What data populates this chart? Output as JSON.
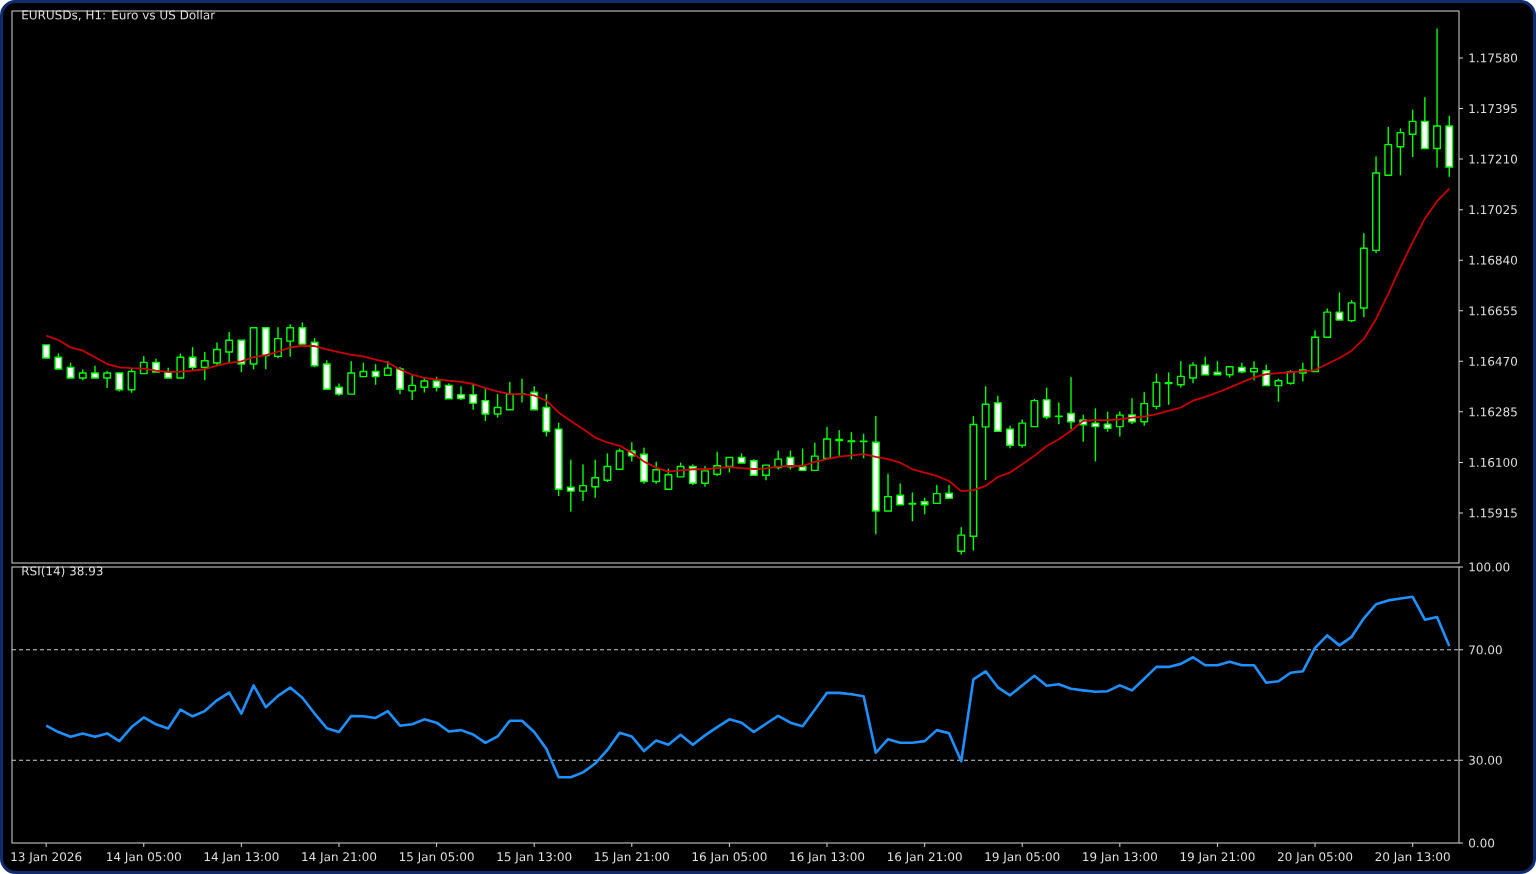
{
  "chart_data": [
    {
      "type": "candlestick",
      "title": "EURUSDs, H1: Euro vs US Dollar",
      "categories": [
        null,
        null,
        null,
        null,
        null,
        null,
        null,
        null,
        null,
        null,
        null,
        null,
        null,
        null,
        null,
        null,
        null,
        null,
        null,
        null,
        null,
        null,
        null,
        null,
        null,
        null,
        null,
        null,
        null,
        null,
        null,
        null,
        null,
        null,
        null,
        null,
        null,
        null,
        null,
        null,
        null,
        null,
        null,
        null,
        null,
        null,
        null,
        null,
        null,
        null,
        null,
        null,
        null,
        null,
        null,
        null,
        null,
        null,
        null,
        null,
        null,
        null,
        null,
        null,
        null,
        null,
        null,
        null,
        null,
        null,
        null,
        null,
        null,
        null,
        null,
        null,
        null,
        null,
        null,
        null,
        null,
        null,
        null,
        null,
        null,
        null,
        null,
        null,
        null,
        null,
        null,
        null,
        null,
        null,
        null,
        null,
        null,
        null,
        null,
        null,
        null,
        null,
        null,
        null,
        null,
        null,
        null,
        null,
        null,
        null,
        null,
        null,
        null,
        null,
        null,
        null
      ],
      "ohlc": [
        [
          1.1653,
          1.1653,
          1.16482,
          1.16482
        ],
        [
          1.16485,
          1.16497,
          1.16441,
          1.16442
        ],
        [
          1.16448,
          1.16463,
          1.16408,
          1.16409
        ],
        [
          1.16409,
          1.16438,
          1.16401,
          1.16427
        ],
        [
          1.16427,
          1.16452,
          1.16409,
          1.16409
        ],
        [
          1.16409,
          1.16433,
          1.16372,
          1.16427
        ],
        [
          1.16427,
          1.16427,
          1.1636,
          1.16366
        ],
        [
          1.16366,
          1.16439,
          1.16355,
          1.16433
        ],
        [
          1.16425,
          1.16487,
          1.16425,
          1.16466
        ],
        [
          1.16466,
          1.16478,
          1.1643,
          1.16431
        ],
        [
          1.16431,
          1.16445,
          1.16409,
          1.16409
        ],
        [
          1.16409,
          1.16497,
          1.16409,
          1.16485
        ],
        [
          1.16485,
          1.1652,
          1.16438,
          1.16448
        ],
        [
          1.16448,
          1.16502,
          1.16401,
          1.16472
        ],
        [
          1.16464,
          1.16537,
          1.16454,
          1.16513
        ],
        [
          1.16504,
          1.16576,
          1.16466,
          1.16547
        ],
        [
          1.16547,
          1.16547,
          1.1643,
          1.1646
        ],
        [
          1.1646,
          1.16593,
          1.16441,
          1.16593
        ],
        [
          1.16593,
          1.16593,
          1.16441,
          1.16491
        ],
        [
          1.16488,
          1.16593,
          1.16481,
          1.16553
        ],
        [
          1.16544,
          1.16604,
          1.16487,
          1.16593
        ],
        [
          1.16593,
          1.1661,
          1.16524,
          1.16533
        ],
        [
          1.1654,
          1.16553,
          1.16448,
          1.16454
        ],
        [
          1.1646,
          1.16472,
          1.16368,
          1.16368
        ],
        [
          1.16375,
          1.16387,
          1.16344,
          1.1635
        ],
        [
          1.1635,
          1.16469,
          1.1635,
          1.16427
        ],
        [
          1.16414,
          1.16463,
          1.16414,
          1.16433
        ],
        [
          1.16433,
          1.16458,
          1.16384,
          1.16414
        ],
        [
          1.16419,
          1.16469,
          1.16419,
          1.16445
        ],
        [
          1.16442,
          1.16448,
          1.1635,
          1.16368
        ],
        [
          1.16362,
          1.16417,
          1.16328,
          1.16382
        ],
        [
          1.16375,
          1.16409,
          1.16356,
          1.16398
        ],
        [
          1.16398,
          1.16411,
          1.1636,
          1.16375
        ],
        [
          1.16382,
          1.16387,
          1.16332,
          1.16333
        ],
        [
          1.16348,
          1.16377,
          1.16328,
          1.16334
        ],
        [
          1.16348,
          1.16384,
          1.16293,
          1.16317
        ],
        [
          1.16326,
          1.16366,
          1.16252,
          1.16277
        ],
        [
          1.16277,
          1.16348,
          1.16264,
          1.16301
        ],
        [
          1.16293,
          1.16393,
          1.16293,
          1.1635
        ],
        [
          1.1635,
          1.16405,
          1.16319,
          1.16351
        ],
        [
          1.16357,
          1.16377,
          1.16293,
          1.16293
        ],
        [
          1.16301,
          1.16348,
          1.16195,
          1.16213
        ],
        [
          1.16222,
          1.16244,
          1.15977,
          1.16002
        ],
        [
          1.16009,
          1.16108,
          1.1592,
          1.15995
        ],
        [
          1.15995,
          1.16091,
          1.15959,
          1.16015
        ],
        [
          1.16011,
          1.16108,
          1.15971,
          1.16044
        ],
        [
          1.16035,
          1.16131,
          1.16028,
          1.16085
        ],
        [
          1.16075,
          1.16148,
          1.16075,
          1.16142
        ],
        [
          1.16142,
          1.16172,
          1.16103,
          1.16124
        ],
        [
          1.1613,
          1.16152,
          1.16022,
          1.1603
        ],
        [
          1.1603,
          1.16101,
          1.16022,
          1.16073
        ],
        [
          1.16002,
          1.16075,
          1.16002,
          1.16055
        ],
        [
          1.16047,
          1.16097,
          1.16047,
          1.16085
        ],
        [
          1.16085,
          1.16091,
          1.16017,
          1.16024
        ],
        [
          1.16024,
          1.16085,
          1.16011,
          1.16069
        ],
        [
          1.16057,
          1.16137,
          1.1605,
          1.16088
        ],
        [
          1.16085,
          1.16118,
          1.16063,
          1.16118
        ],
        [
          1.16118,
          1.16131,
          1.16098,
          1.16098
        ],
        [
          1.16106,
          1.1611,
          1.16053,
          1.16053
        ],
        [
          1.16053,
          1.1609,
          1.16035,
          1.1609
        ],
        [
          1.16081,
          1.16142,
          1.16074,
          1.16112
        ],
        [
          1.16118,
          1.16142,
          1.16074,
          1.16084
        ],
        [
          1.16084,
          1.16148,
          1.16071,
          1.16071
        ],
        [
          1.16071,
          1.1617,
          1.16071,
          1.16123
        ],
        [
          1.16115,
          1.16228,
          1.16115,
          1.16186
        ],
        [
          1.1618,
          1.16216,
          1.16124,
          1.16184
        ],
        [
          1.16179,
          1.16209,
          1.16112,
          1.16176
        ],
        [
          1.16178,
          1.16203,
          1.16115,
          1.16176
        ],
        [
          1.16174,
          1.16268,
          1.15837,
          1.15922
        ],
        [
          1.15922,
          1.16057,
          1.15922,
          1.15975
        ],
        [
          1.1598,
          1.16021,
          1.15945,
          1.15945
        ],
        [
          1.1595,
          1.15988,
          1.15885,
          1.15948
        ],
        [
          1.15956,
          1.15969,
          1.1591,
          1.15945
        ],
        [
          1.1595,
          1.16016,
          1.1595,
          1.15986
        ],
        [
          1.15987,
          1.16016,
          1.15969,
          1.15969
        ],
        [
          1.15775,
          1.15861,
          1.15763,
          1.15834
        ],
        [
          1.1583,
          1.16268,
          1.15778,
          1.16239
        ],
        [
          1.1623,
          1.16377,
          1.16036,
          1.16313
        ],
        [
          1.16318,
          1.16342,
          1.16214,
          1.16214
        ],
        [
          1.16222,
          1.16233,
          1.16152,
          1.16163
        ],
        [
          1.16163,
          1.16255,
          1.16154,
          1.16244
        ],
        [
          1.16231,
          1.1633,
          1.16231,
          1.16326
        ],
        [
          1.16329,
          1.16372,
          1.16258,
          1.16266
        ],
        [
          1.16269,
          1.16318,
          1.1624,
          1.16268
        ],
        [
          1.16279,
          1.16411,
          1.16222,
          1.16249
        ],
        [
          1.16255,
          1.16273,
          1.16176,
          1.16238
        ],
        [
          1.16244,
          1.16296,
          1.16103,
          1.16231
        ],
        [
          1.1624,
          1.16284,
          1.16212,
          1.16225
        ],
        [
          1.16231,
          1.16285,
          1.16195,
          1.16273
        ],
        [
          1.16274,
          1.16333,
          1.16241,
          1.16249
        ],
        [
          1.16249,
          1.16355,
          1.16234,
          1.16315
        ],
        [
          1.16305,
          1.16423,
          1.16295,
          1.16393
        ],
        [
          1.16389,
          1.16427,
          1.16311,
          1.16392
        ],
        [
          1.16384,
          1.16469,
          1.16374,
          1.16415
        ],
        [
          1.16409,
          1.16465,
          1.1639,
          1.16456
        ],
        [
          1.16456,
          1.16485,
          1.16421,
          1.16421
        ],
        [
          1.1643,
          1.16469,
          1.16421,
          1.16421
        ],
        [
          1.16421,
          1.1645,
          1.16411,
          1.1645
        ],
        [
          1.16448,
          1.16463,
          1.16426,
          1.16432
        ],
        [
          1.16432,
          1.16469,
          1.16401,
          1.16444
        ],
        [
          1.16436,
          1.16456,
          1.16381,
          1.16381
        ],
        [
          1.16381,
          1.16405,
          1.16322,
          1.16399
        ],
        [
          1.1639,
          1.16436,
          1.16384,
          1.16432
        ],
        [
          1.16427,
          1.16463,
          1.16396,
          1.16438
        ],
        [
          1.16433,
          1.16582,
          1.16433,
          1.16558
        ],
        [
          1.16558,
          1.16662,
          1.16558,
          1.1665
        ],
        [
          1.1665,
          1.1672,
          1.16621,
          1.16621
        ],
        [
          1.16619,
          1.16692,
          1.16613,
          1.16684
        ],
        [
          1.16665,
          1.16937,
          1.16631,
          1.16884
        ],
        [
          1.16876,
          1.17218,
          1.16866,
          1.17159
        ],
        [
          1.17151,
          1.17326,
          1.17151,
          1.17263
        ],
        [
          1.17255,
          1.1732,
          1.17151,
          1.17307
        ],
        [
          1.17301,
          1.17389,
          1.17218,
          1.17348
        ],
        [
          1.17348,
          1.17435,
          1.17249,
          1.17249
        ],
        [
          1.17249,
          1.17686,
          1.17179,
          1.17331
        ],
        [
          1.17331,
          1.17367,
          1.17145,
          1.17181
        ]
      ],
      "color": "#00ff00",
      "ylim": [
        1.15732,
        1.17752
      ],
      "yticks": [
        {
          "value": 1.15915,
          "label": "1.15915"
        },
        {
          "value": 1.161,
          "label": "1.16100"
        },
        {
          "value": 1.16285,
          "label": "1.16285"
        },
        {
          "value": 1.1647,
          "label": "1.16470"
        },
        {
          "value": 1.16655,
          "label": "1.16655"
        },
        {
          "value": 1.1684,
          "label": "1.16840"
        },
        {
          "value": 1.17025,
          "label": "1.17025"
        },
        {
          "value": 1.1721,
          "label": "1.17210"
        },
        {
          "value": 1.17395,
          "label": "1.17395"
        },
        {
          "value": 1.1758,
          "label": "1.17580"
        }
      ],
      "tick_labels": "y",
      "series": [
        {
          "type": "line",
          "color": "#cc0000",
          "values": [
            1.16564,
            1.16548,
            1.16521,
            1.16509,
            1.16485,
            1.1646,
            1.16448,
            1.16445,
            1.16443,
            1.16436,
            1.16431,
            1.16432,
            1.16436,
            1.16441,
            1.16454,
            1.16464,
            1.1647,
            1.16485,
            1.16493,
            1.16505,
            1.16521,
            1.16527,
            1.16526,
            1.16514,
            1.16504,
            1.16494,
            1.16488,
            1.16476,
            1.16466,
            1.1644,
            1.16421,
            1.16409,
            1.16404,
            1.16399,
            1.16395,
            1.16387,
            1.16372,
            1.1636,
            1.1635,
            1.1635,
            1.16345,
            1.16326,
            1.16283,
            1.16252,
            1.16222,
            1.16191,
            1.16173,
            1.16161,
            1.16136,
            1.16103,
            1.16081,
            1.16066,
            1.16071,
            1.16075,
            1.16075,
            1.16079,
            1.16083,
            1.16079,
            1.16076,
            1.16078,
            1.16085,
            1.16087,
            1.16087,
            1.16102,
            1.16112,
            1.16121,
            1.16126,
            1.1613,
            1.1612,
            1.16112,
            1.16099,
            1.16075,
            1.16063,
            1.16051,
            1.16032,
            1.15995,
            1.15999,
            1.16014,
            1.16047,
            1.16063,
            1.16093,
            1.16124,
            1.1616,
            1.16185,
            1.16216,
            1.16252,
            1.16255,
            1.16255,
            1.16258,
            1.16264,
            1.16268,
            1.16277,
            1.16289,
            1.16301,
            1.16326,
            1.1634,
            1.16356,
            1.16374,
            1.16393,
            1.16411,
            1.16423,
            1.16427,
            1.1643,
            1.16433,
            1.16438,
            1.1646,
            1.16482,
            1.16509,
            1.16552,
            1.16625,
            1.16717,
            1.16815,
            1.16906,
            1.16992,
            1.17056,
            1.17102
          ]
        }
      ]
    },
    {
      "type": "line",
      "title": "RSI(14) 38.93",
      "categories": [
        "13 Jan 2026",
        null,
        null,
        null,
        null,
        null,
        null,
        null,
        "14 Jan 05:00",
        null,
        null,
        null,
        null,
        null,
        null,
        null,
        "14 Jan 13:00",
        null,
        null,
        null,
        null,
        null,
        null,
        null,
        "14 Jan 21:00",
        null,
        null,
        null,
        null,
        null,
        null,
        null,
        "15 Jan 05:00",
        null,
        null,
        null,
        null,
        null,
        null,
        null,
        "15 Jan 13:00",
        null,
        null,
        null,
        null,
        null,
        null,
        null,
        "15 Jan 21:00",
        null,
        null,
        null,
        null,
        null,
        null,
        null,
        "16 Jan 05:00",
        null,
        null,
        null,
        null,
        null,
        null,
        null,
        "16 Jan 13:00",
        null,
        null,
        null,
        null,
        null,
        null,
        null,
        "16 Jan 21:00",
        null,
        null,
        null,
        null,
        null,
        null,
        null,
        "19 Jan 05:00",
        null,
        null,
        null,
        null,
        null,
        null,
        null,
        "19 Jan 13:00",
        null,
        null,
        null,
        null,
        null,
        null,
        null,
        "19 Jan 21:00",
        null,
        null,
        null,
        null,
        null,
        null,
        null,
        "20 Jan 05:00",
        null,
        null,
        null,
        null,
        null,
        null,
        null,
        "20 Jan 13:00",
        null,
        null,
        null
      ],
      "series": [
        {
          "color": "#1e90ff",
          "values": [
            42.5,
            40.2,
            38.5,
            39.7,
            38.5,
            39.7,
            36.9,
            42.0,
            45.5,
            43.0,
            41.5,
            48.3,
            45.9,
            47.8,
            51.7,
            54.5,
            46.9,
            57.1,
            49.2,
            53.3,
            56.3,
            52.6,
            46.9,
            41.6,
            40.2,
            46.0,
            45.9,
            45.3,
            47.8,
            42.5,
            43.0,
            44.8,
            43.6,
            40.4,
            40.9,
            39.3,
            36.3,
            38.6,
            44.3,
            44.3,
            40.2,
            34.1,
            23.8,
            23.8,
            25.6,
            28.8,
            33.7,
            39.9,
            38.6,
            33.3,
            37.1,
            35.6,
            39.2,
            35.6,
            39.0,
            42.0,
            44.8,
            43.6,
            40.2,
            43.2,
            46.1,
            43.6,
            42.3,
            48.3,
            54.4,
            54.4,
            53.9,
            53.2,
            32.7,
            37.6,
            36.3,
            36.3,
            36.9,
            40.9,
            39.8,
            29.6,
            59.3,
            62.2,
            56.4,
            53.5,
            57.1,
            60.6,
            57.0,
            57.5,
            55.9,
            55.3,
            54.8,
            55.0,
            57.1,
            55.3,
            59.5,
            63.8,
            63.8,
            64.9,
            67.3,
            64.4,
            64.4,
            65.7,
            64.4,
            64.4,
            58.1,
            58.6,
            61.7,
            62.2,
            70.7,
            75.2,
            71.6,
            74.7,
            81.4,
            86.5,
            87.9,
            88.6,
            89.2,
            80.9,
            81.9,
            71.4
          ]
        }
      ],
      "ylim": [
        0,
        100
      ],
      "yticks": [
        {
          "value": 0,
          "label": "0.00"
        },
        {
          "value": 30,
          "label": "30.00"
        },
        {
          "value": 70,
          "label": "70.00"
        },
        {
          "value": 100,
          "label": "100.00"
        }
      ],
      "ref_lines": [
        {
          "axis": "y",
          "value": 70,
          "line_style": "dashed",
          "color": "#d0d0d0"
        },
        {
          "axis": "y",
          "value": 30,
          "line_style": "dashed",
          "color": "#d0d0d0"
        }
      ]
    }
  ]
}
